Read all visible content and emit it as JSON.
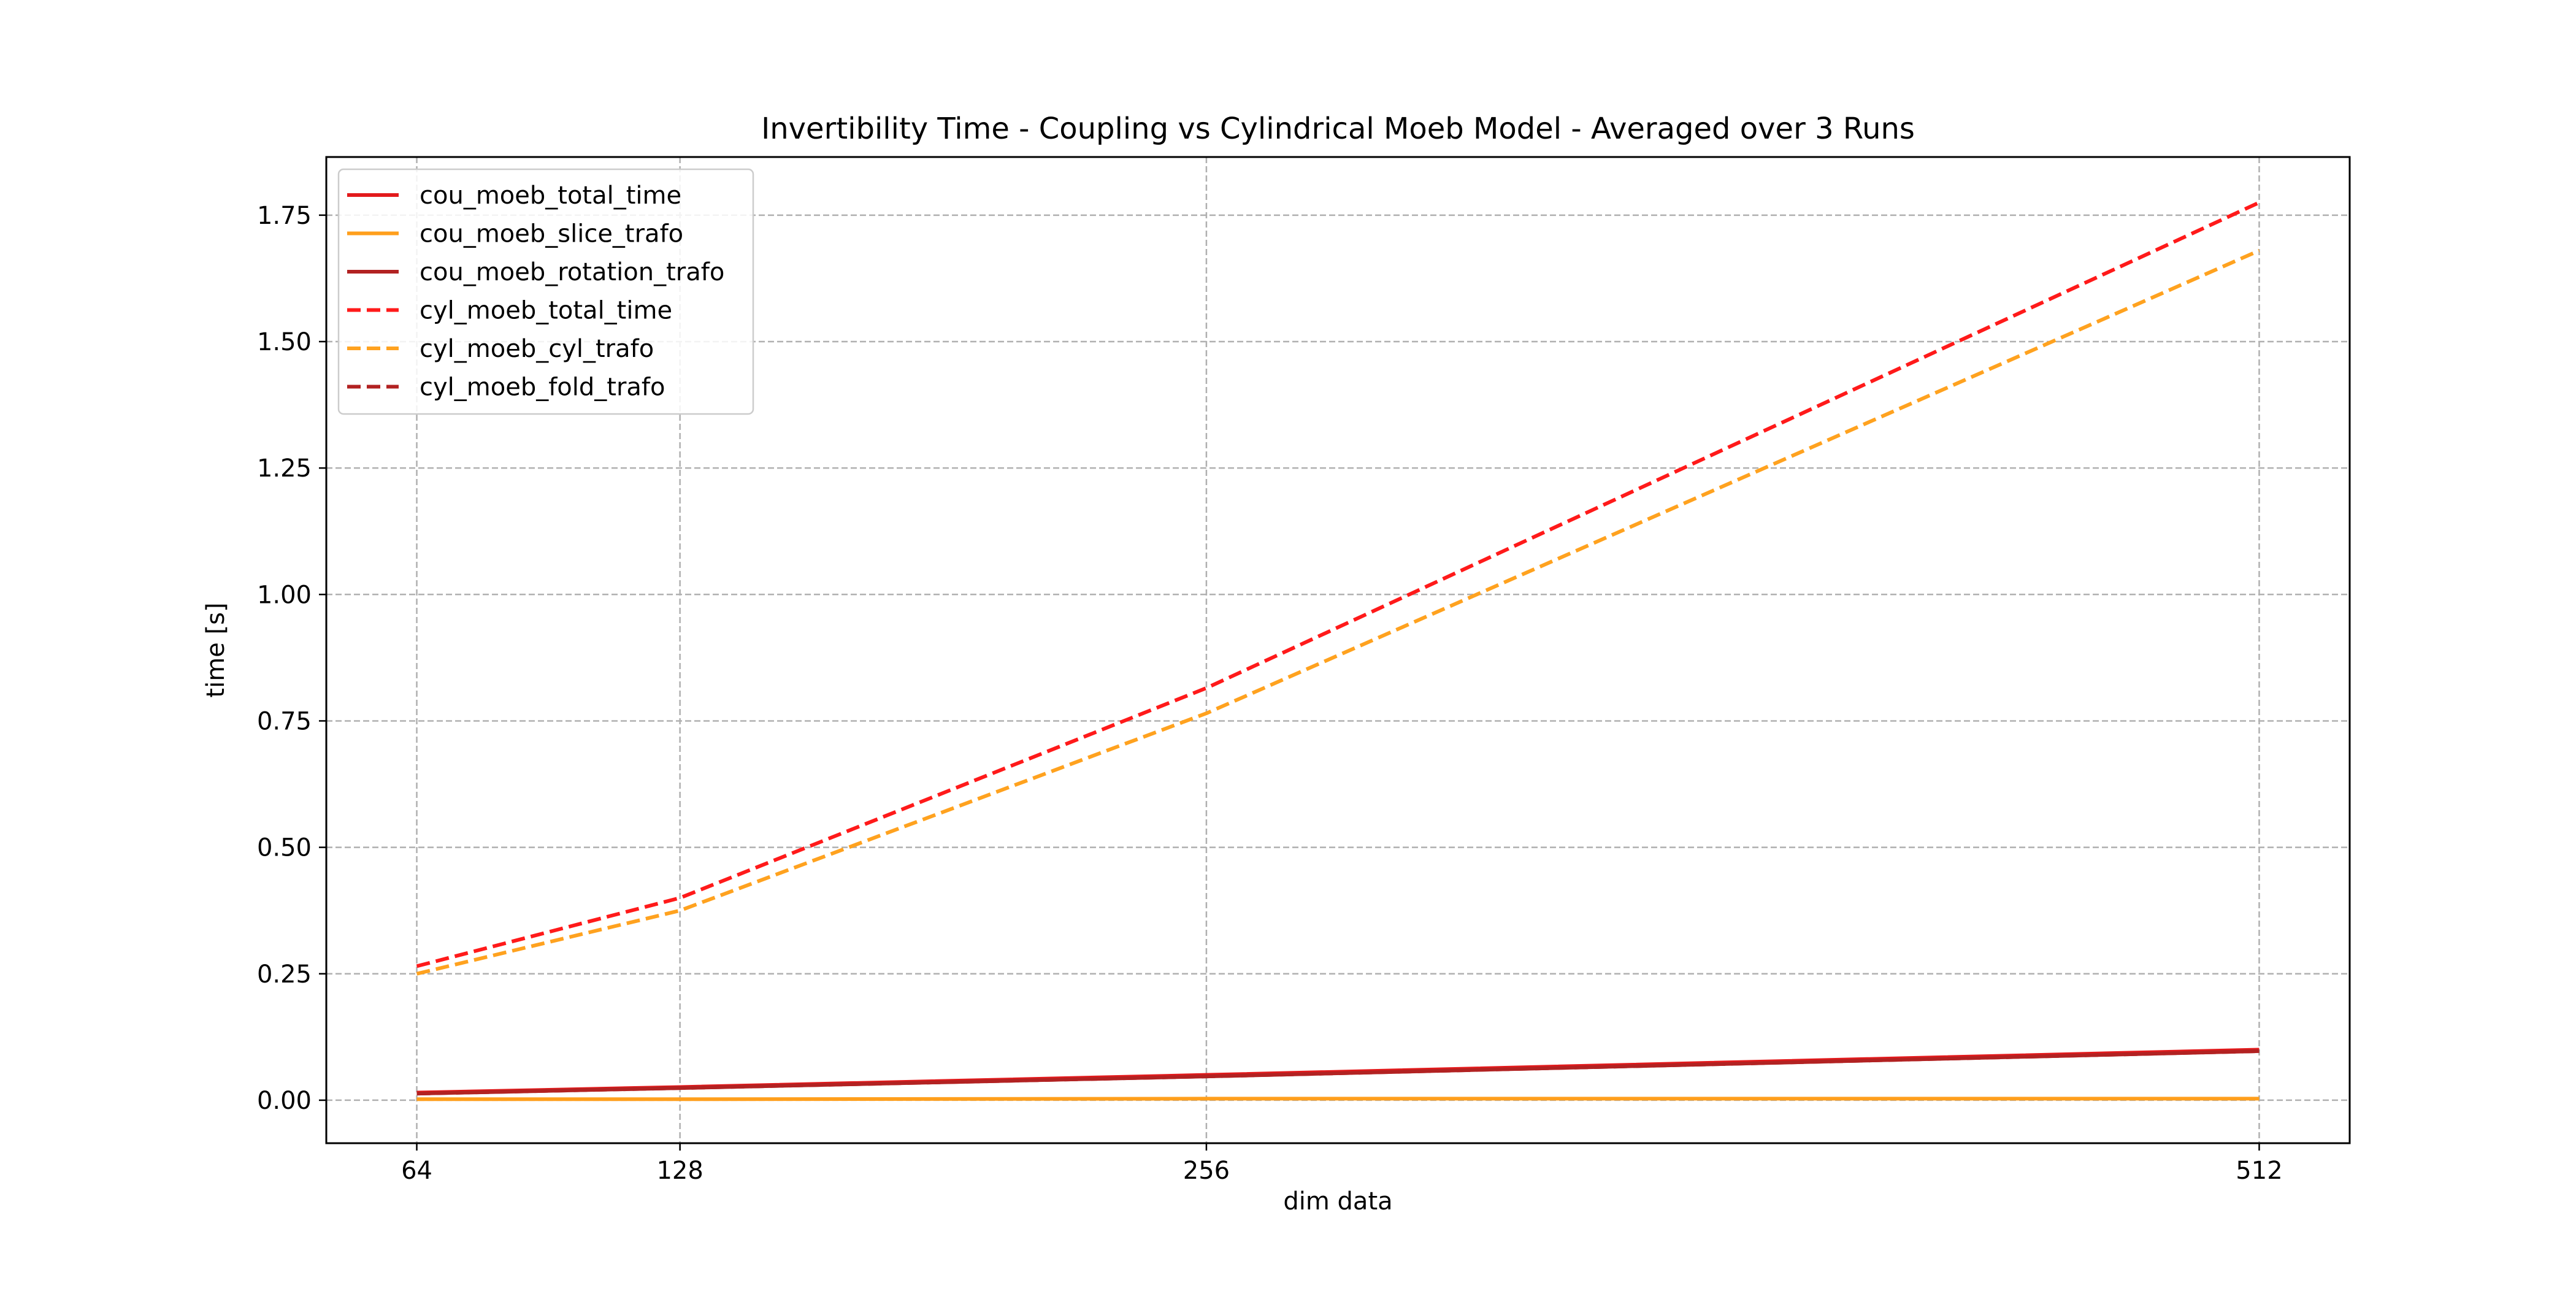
{
  "chart_data": {
    "type": "line",
    "title": "Invertibility Time - Coupling vs Cylindrical Moeb Model - Averaged over 3 Runs",
    "xlabel": "dim data",
    "ylabel": "time [s]",
    "x": [
      64,
      128,
      256,
      512
    ],
    "x_tick_labels": [
      "64",
      "128",
      "256",
      "512"
    ],
    "xlim": [
      42,
      534
    ],
    "y_ticks": [
      0.0,
      0.25,
      0.5,
      0.75,
      1.0,
      1.25,
      1.5,
      1.75
    ],
    "y_tick_labels": [
      "0.00",
      "0.25",
      "0.50",
      "0.75",
      "1.00",
      "1.25",
      "1.50",
      "1.75"
    ],
    "ylim": [
      -0.085,
      1.865
    ],
    "grid": true,
    "legend_position": "upper-left",
    "series": [
      {
        "name": "cou_moeb_total_time",
        "values": [
          0.015,
          0.026,
          0.05,
          0.1
        ],
        "color": "#e31a1c",
        "dash": "solid"
      },
      {
        "name": "cou_moeb_slice_trafo",
        "values": [
          0.002,
          0.002,
          0.003,
          0.003
        ],
        "color": "#ff9f1c",
        "dash": "solid"
      },
      {
        "name": "cou_moeb_rotation_trafo",
        "values": [
          0.013,
          0.024,
          0.047,
          0.097
        ],
        "color": "#b22222",
        "dash": "solid"
      },
      {
        "name": "cyl_moeb_total_time",
        "values": [
          0.265,
          0.4,
          0.815,
          1.775
        ],
        "color": "#ff1a1a",
        "dash": "dashed"
      },
      {
        "name": "cyl_moeb_cyl_trafo",
        "values": [
          0.25,
          0.375,
          0.765,
          1.68
        ],
        "color": "#ffa21f",
        "dash": "dashed"
      },
      {
        "name": "cyl_moeb_fold_trafo",
        "values": [
          0.013,
          0.024,
          0.047,
          0.097
        ],
        "color": "#b22222",
        "dash": "dashed"
      }
    ]
  }
}
